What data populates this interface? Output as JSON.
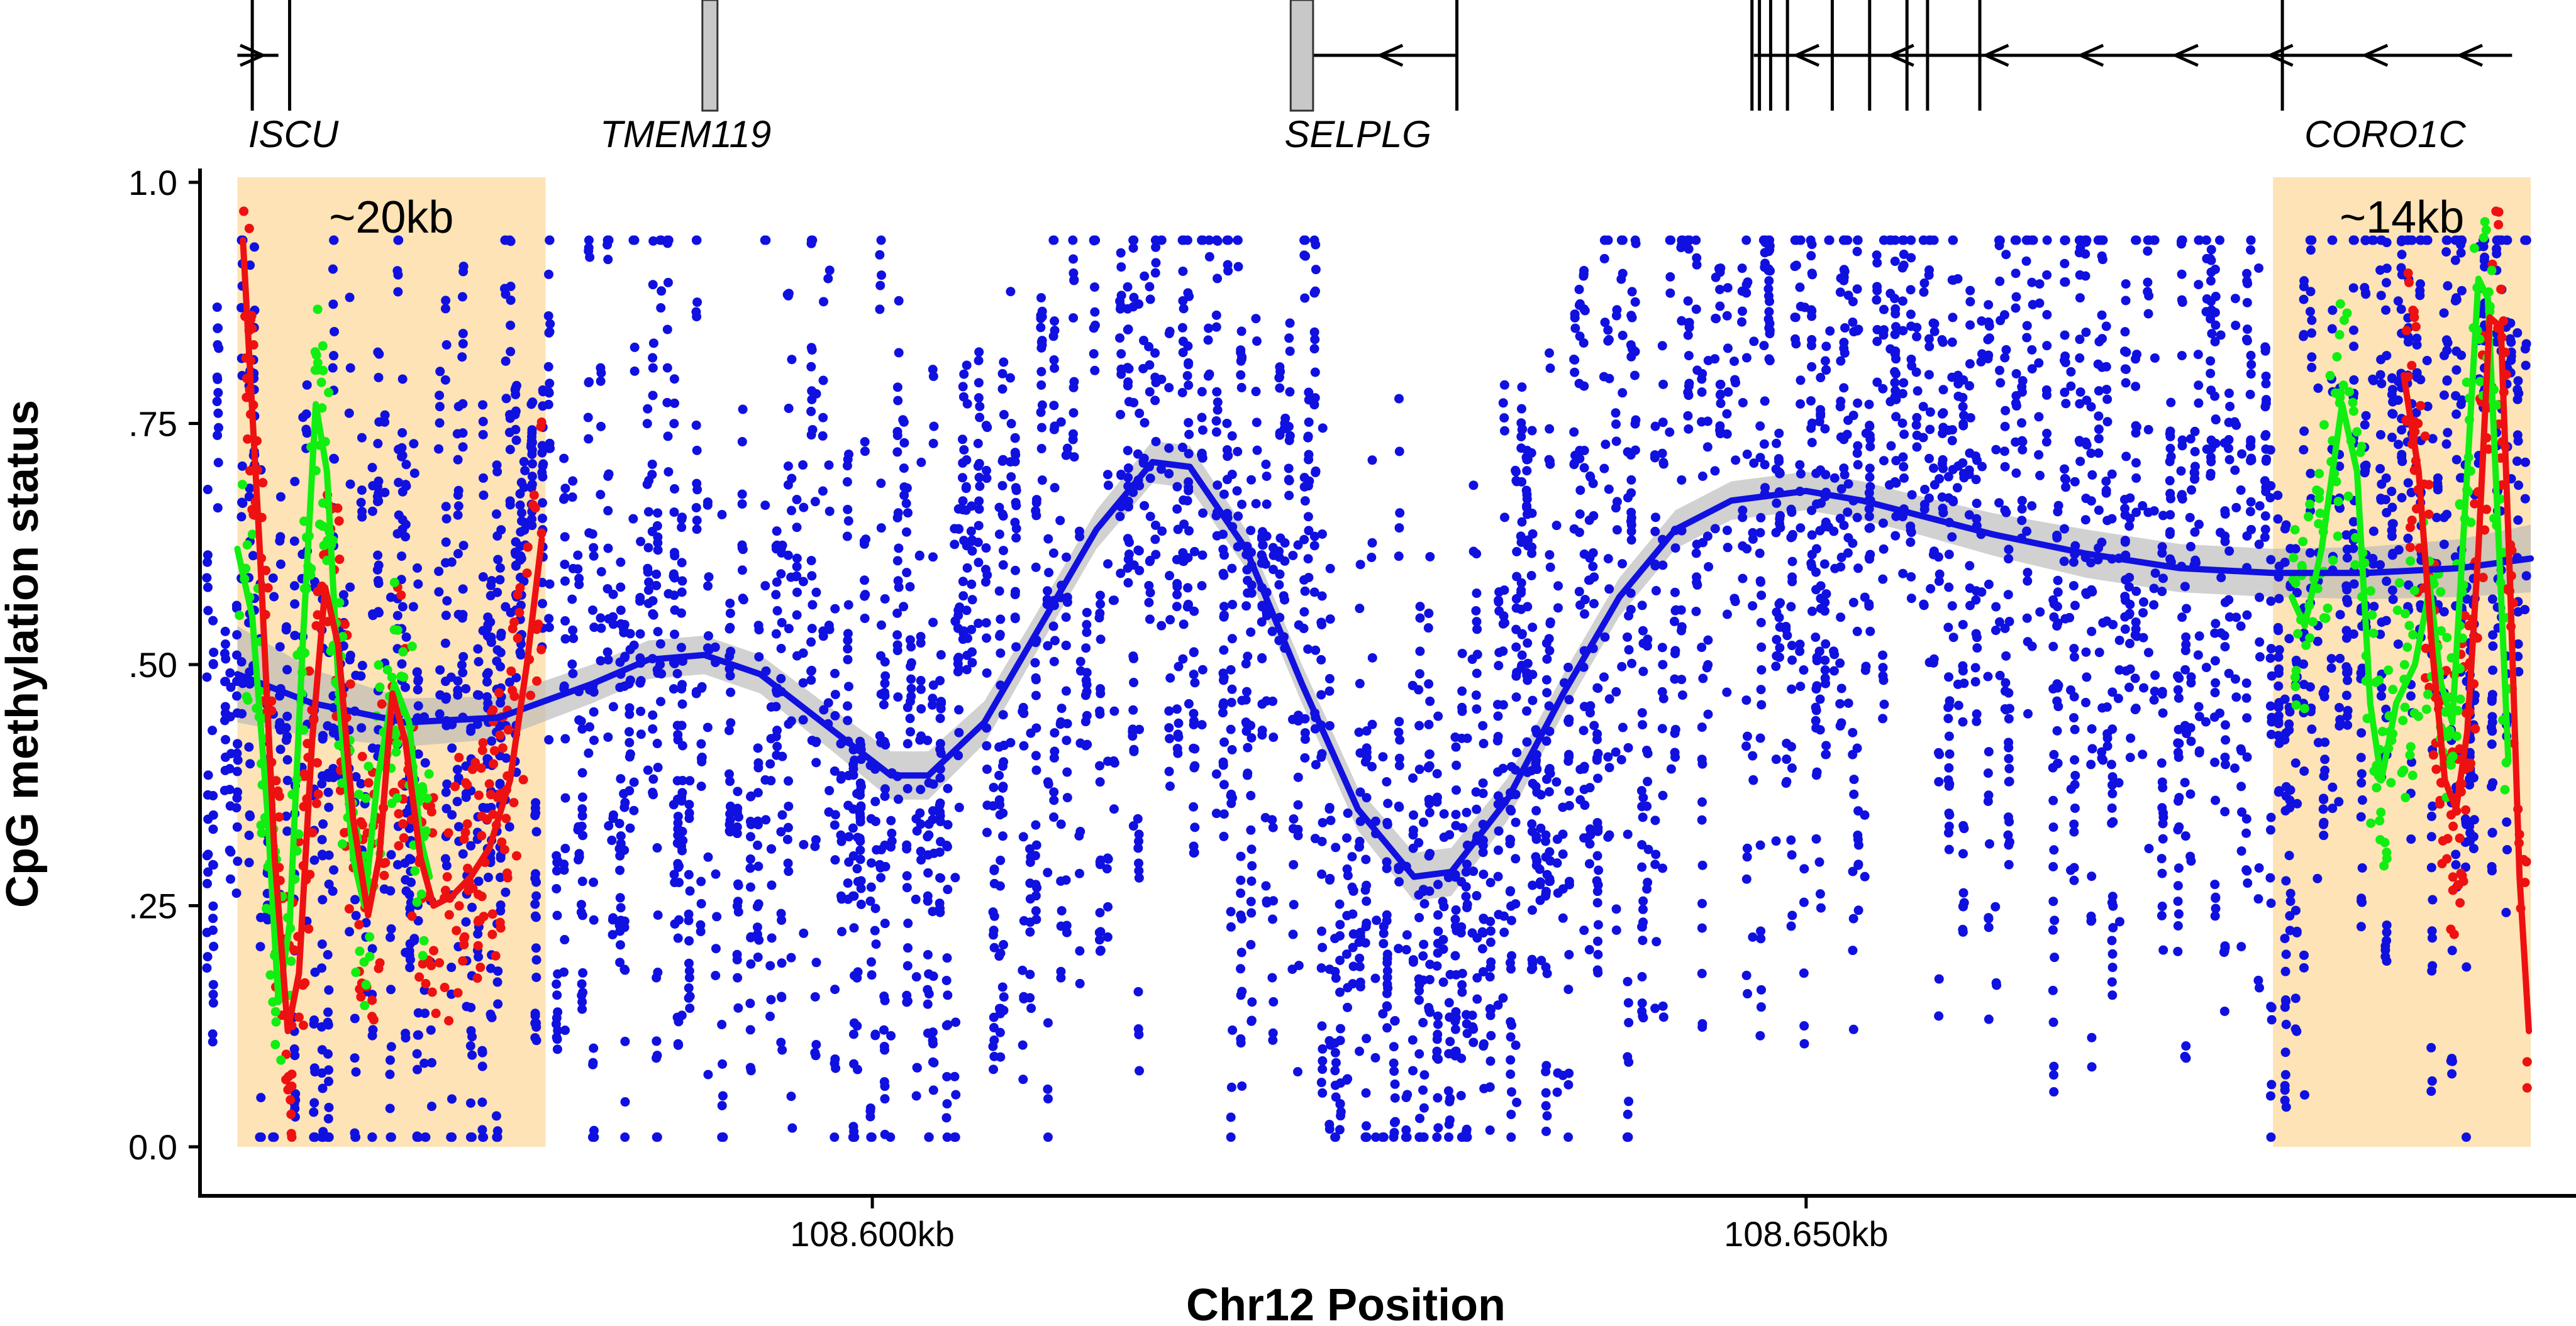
{
  "chart_data": {
    "type": "scatter",
    "xlabel": "Chr12 Position",
    "ylabel": "CpG methylation status",
    "xlim": [
      108564000,
      108689000
    ],
    "ylim": [
      0,
      1
    ],
    "x_ticks": [
      {
        "value": 108600000,
        "label": "108.600kb"
      },
      {
        "value": 108650000,
        "label": "108.650kb"
      }
    ],
    "y_ticks": [
      {
        "value": 0.0,
        "label": "0.0"
      },
      {
        "value": 0.25,
        "label": ".25"
      },
      {
        "value": 0.5,
        "label": ".50"
      },
      {
        "value": 0.75,
        "label": ".75"
      },
      {
        "value": 1.0,
        "label": "1.0"
      }
    ],
    "colors": {
      "blue": "#1010e0",
      "red": "#ee1111",
      "green": "#11ee11",
      "region": "#fde3b5",
      "band": "#b9b9b9"
    },
    "regions": [
      {
        "x": [
          108566000,
          108582500
        ],
        "label": "~20kb"
      },
      {
        "x": [
          108675000,
          108688800
        ],
        "label": "~14kb"
      }
    ],
    "genes": [
      {
        "name": "ISCU",
        "label_x": 108569000,
        "exons": [],
        "ticks": [
          108566800,
          108568800
        ],
        "start": 108566000,
        "end": 108568200,
        "strand": "+"
      },
      {
        "name": "TMEM119",
        "label_x": 108590000,
        "exons": [
          [
            108590900,
            108591700
          ]
        ],
        "ticks": [],
        "start": null,
        "end": null,
        "strand": null
      },
      {
        "name": "SELPLG",
        "label_x": 108626000,
        "exons": [
          [
            108622400,
            108623600
          ]
        ],
        "ticks": [
          108631300
        ],
        "start": 108623600,
        "end": 108631300,
        "strand": "-"
      },
      {
        "name": "CORO1C",
        "label_x": 108681000,
        "exons": [],
        "ticks": [
          108647100,
          108647500,
          108648100,
          108649000,
          108651400,
          108653400,
          108655400,
          108656500,
          108659300,
          108675500
        ],
        "start": 108647200,
        "end": 108687800,
        "strand": "-"
      }
    ],
    "series": [
      {
        "color": "blue",
        "smooth": [
          [
            108566000,
            0.49
          ],
          [
            108570000,
            0.46
          ],
          [
            108575000,
            0.44
          ],
          [
            108580000,
            0.445
          ],
          [
            108585000,
            0.48
          ],
          [
            108588000,
            0.505
          ],
          [
            108591000,
            0.51
          ],
          [
            108594000,
            0.49
          ],
          [
            108598000,
            0.43
          ],
          [
            108601000,
            0.385
          ],
          [
            108603000,
            0.385
          ],
          [
            108606000,
            0.44
          ],
          [
            108609000,
            0.54
          ],
          [
            108612000,
            0.64
          ],
          [
            108615000,
            0.71
          ],
          [
            108617000,
            0.705
          ],
          [
            108620000,
            0.62
          ],
          [
            108623000,
            0.48
          ],
          [
            108626000,
            0.35
          ],
          [
            108629000,
            0.28
          ],
          [
            108631000,
            0.285
          ],
          [
            108634000,
            0.36
          ],
          [
            108637000,
            0.47
          ],
          [
            108640000,
            0.57
          ],
          [
            108643000,
            0.64
          ],
          [
            108646000,
            0.67
          ],
          [
            108650000,
            0.68
          ],
          [
            108653000,
            0.67
          ],
          [
            108656000,
            0.655
          ],
          [
            108660000,
            0.635
          ],
          [
            108665000,
            0.615
          ],
          [
            108670000,
            0.6
          ],
          [
            108675000,
            0.595
          ],
          [
            108680000,
            0.595
          ],
          [
            108685000,
            0.6
          ],
          [
            108688800,
            0.61
          ]
        ],
        "band": [
          0.05,
          0.035,
          0.025,
          0.022,
          0.02,
          0.02,
          0.02,
          0.02,
          0.022,
          0.025,
          0.025,
          0.022,
          0.02,
          0.02,
          0.022,
          0.022,
          0.02,
          0.02,
          0.022,
          0.025,
          0.025,
          0.022,
          0.02,
          0.02,
          0.02,
          0.02,
          0.02,
          0.02,
          0.02,
          0.022,
          0.025,
          0.025,
          0.025,
          0.027,
          0.03,
          0.035
        ]
      },
      {
        "color": "red",
        "smooth": [
          [
            108566300,
            0.94
          ],
          [
            108567200,
            0.62
          ],
          [
            108568000,
            0.3
          ],
          [
            108568700,
            0.12
          ],
          [
            108569300,
            0.18
          ],
          [
            108570000,
            0.42
          ],
          [
            108570700,
            0.58
          ],
          [
            108571400,
            0.52
          ],
          [
            108572200,
            0.34
          ],
          [
            108573000,
            0.24
          ],
          [
            108573600,
            0.3
          ],
          [
            108574300,
            0.47
          ],
          [
            108575000,
            0.42
          ],
          [
            108575800,
            0.3
          ],
          [
            108576500,
            0.25
          ],
          [
            108577500,
            0.26
          ],
          [
            108578500,
            0.28
          ],
          [
            108579500,
            0.31
          ],
          [
            108580600,
            0.38
          ],
          [
            108581500,
            0.5
          ],
          [
            108582300,
            0.63
          ],
          [
            108682000,
            0.8
          ],
          [
            108682800,
            0.7
          ],
          [
            108683500,
            0.52
          ],
          [
            108684200,
            0.38
          ],
          [
            108684800,
            0.35
          ],
          [
            108685400,
            0.43
          ],
          [
            108686000,
            0.62
          ],
          [
            108686600,
            0.86
          ],
          [
            108687200,
            0.85
          ],
          [
            108687700,
            0.58
          ],
          [
            108688200,
            0.28
          ],
          [
            108688700,
            0.12
          ]
        ]
      },
      {
        "color": "green",
        "smooth": [
          [
            108566000,
            0.62
          ],
          [
            108566800,
            0.55
          ],
          [
            108567600,
            0.35
          ],
          [
            108568200,
            0.15
          ],
          [
            108568800,
            0.23
          ],
          [
            108569500,
            0.52
          ],
          [
            108570200,
            0.77
          ],
          [
            108570800,
            0.7
          ],
          [
            108571500,
            0.45
          ],
          [
            108572200,
            0.3
          ],
          [
            108572800,
            0.25
          ],
          [
            108573500,
            0.38
          ],
          [
            108574400,
            0.48
          ],
          [
            108575200,
            0.44
          ],
          [
            108575800,
            0.32
          ],
          [
            108576300,
            0.28
          ],
          [
            108676000,
            0.57
          ],
          [
            108676700,
            0.54
          ],
          [
            108677600,
            0.62
          ],
          [
            108678700,
            0.77
          ],
          [
            108679500,
            0.7
          ],
          [
            108680200,
            0.46
          ],
          [
            108680800,
            0.38
          ],
          [
            108681600,
            0.46
          ],
          [
            108682600,
            0.5
          ],
          [
            108683400,
            0.58
          ],
          [
            108684000,
            0.48
          ],
          [
            108684600,
            0.44
          ],
          [
            108685400,
            0.7
          ],
          [
            108686000,
            0.9
          ],
          [
            108686500,
            0.88
          ],
          [
            108687100,
            0.62
          ],
          [
            108687600,
            0.4
          ]
        ]
      }
    ]
  }
}
